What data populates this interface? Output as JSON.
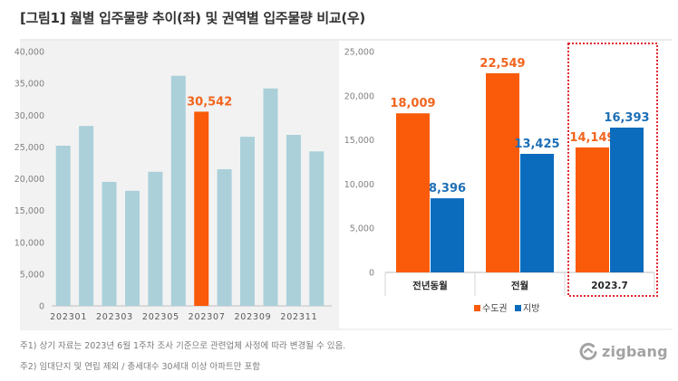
{
  "title": "[그림1] 월별 입주물량 추이(좌) 및 권역별 입주물량 비교(우)",
  "colors": {
    "left_panel_background": "#f2f2f2",
    "monthly_bar": "#abd0da",
    "highlight_bar": "#f95b0a",
    "highlight_label": "#f2651f",
    "capital_area": "#f95b0a",
    "capital_area_label": "#f2651f",
    "regional": "#0b6cbd",
    "regional_label": "#1e6fb6",
    "highlight_box": "#e0282e",
    "axis": "#bfbfbf"
  },
  "chart_data": [
    {
      "type": "bar",
      "categories": [
        "202301",
        "",
        "202303",
        "",
        "202305",
        "",
        "202307",
        "",
        "202309",
        "",
        "202311",
        ""
      ],
      "values": [
        25200,
        28300,
        19500,
        18100,
        21100,
        36200,
        30542,
        21500,
        26600,
        34200,
        26900,
        24300
      ],
      "highlight_category": "202307",
      "data_labels": [
        {
          "category": "202307",
          "text": "30,542"
        }
      ],
      "ylim": [
        0,
        40000
      ],
      "yticks": [
        0,
        5000,
        10000,
        15000,
        20000,
        25000,
        30000,
        35000,
        40000
      ],
      "ytick_labels": [
        "0",
        "5,000",
        "10,000",
        "15,000",
        "20,000",
        "25,000",
        "30,000",
        "35,000",
        "40,000"
      ],
      "grid": false,
      "title": "",
      "xlabel": "",
      "ylabel": ""
    },
    {
      "type": "bar",
      "categories": [
        "전년동월",
        "전월",
        "2023.7"
      ],
      "series": [
        {
          "name": "수도권",
          "values": [
            18009,
            22549,
            14149
          ],
          "labels": [
            "18,009",
            "22,549",
            "14,149"
          ]
        },
        {
          "name": "지방",
          "values": [
            8396,
            13425,
            16393
          ],
          "labels": [
            "8,396",
            "13,425",
            "16,393"
          ]
        }
      ],
      "highlight_category": "2023.7",
      "ylim": [
        0,
        25000
      ],
      "yticks": [
        0,
        5000,
        10000,
        15000,
        20000,
        25000
      ],
      "ytick_labels": [
        "0",
        "5,000",
        "10,000",
        "15,000",
        "20,000",
        "25,000"
      ],
      "legend": "bottom",
      "grid": false,
      "title": "",
      "xlabel": "",
      "ylabel": ""
    }
  ],
  "footnotes": [
    "주1) 상기 자료는 2023년 6월 1주차 조사 기준으로 관련업체 사정에 따라 변경될 수 있음.",
    "주2) 임대단지 및 연립 제외 / 총세대수 30세대 이상 아파트만 포함"
  ],
  "logo": {
    "text": "zigbang",
    "icon": "zigbang-logo-icon"
  }
}
